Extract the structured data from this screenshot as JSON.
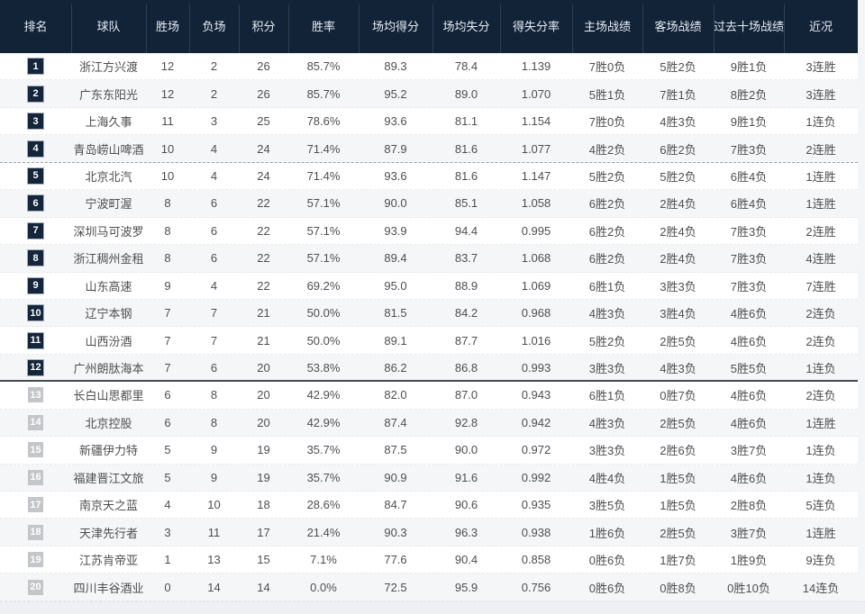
{
  "table": {
    "columns": [
      {
        "key": "rank",
        "label": "排名"
      },
      {
        "key": "team",
        "label": "球队"
      },
      {
        "key": "wins",
        "label": "胜场"
      },
      {
        "key": "losses",
        "label": "负场"
      },
      {
        "key": "points",
        "label": "积分"
      },
      {
        "key": "win_rate",
        "label": "胜率"
      },
      {
        "key": "avg_scored",
        "label": "场均得分"
      },
      {
        "key": "avg_allowed",
        "label": "场均失分"
      },
      {
        "key": "score_ratio",
        "label": "得失分率"
      },
      {
        "key": "home_record",
        "label": "主场战绩"
      },
      {
        "key": "away_record",
        "label": "客场战绩"
      },
      {
        "key": "last10_record",
        "label": "过去十场战绩"
      },
      {
        "key": "streak",
        "label": "近况"
      }
    ],
    "playoff_line_after_rank": 4,
    "division_line_after_rank": 12,
    "highlight_rank_threshold": 12,
    "rows": [
      {
        "rank": 1,
        "team": "浙江方兴渡",
        "wins": 12,
        "losses": 2,
        "points": 26,
        "win_rate": "85.7%",
        "avg_scored": "89.3",
        "avg_allowed": "78.4",
        "score_ratio": "1.139",
        "home_record": "7胜0负",
        "away_record": "5胜2负",
        "last10_record": "9胜1负",
        "streak": "3连胜"
      },
      {
        "rank": 2,
        "team": "广东东阳光",
        "wins": 12,
        "losses": 2,
        "points": 26,
        "win_rate": "85.7%",
        "avg_scored": "95.2",
        "avg_allowed": "89.0",
        "score_ratio": "1.070",
        "home_record": "5胜1负",
        "away_record": "7胜1负",
        "last10_record": "8胜2负",
        "streak": "3连胜"
      },
      {
        "rank": 3,
        "team": "上海久事",
        "wins": 11,
        "losses": 3,
        "points": 25,
        "win_rate": "78.6%",
        "avg_scored": "93.6",
        "avg_allowed": "81.1",
        "score_ratio": "1.154",
        "home_record": "7胜0负",
        "away_record": "4胜3负",
        "last10_record": "9胜1负",
        "streak": "1连负"
      },
      {
        "rank": 4,
        "team": "青岛崂山啤酒",
        "wins": 10,
        "losses": 4,
        "points": 24,
        "win_rate": "71.4%",
        "avg_scored": "87.9",
        "avg_allowed": "81.6",
        "score_ratio": "1.077",
        "home_record": "4胜2负",
        "away_record": "6胜2负",
        "last10_record": "7胜3负",
        "streak": "2连胜"
      },
      {
        "rank": 5,
        "team": "北京北汽",
        "wins": 10,
        "losses": 4,
        "points": 24,
        "win_rate": "71.4%",
        "avg_scored": "93.6",
        "avg_allowed": "81.6",
        "score_ratio": "1.147",
        "home_record": "5胜2负",
        "away_record": "5胜2负",
        "last10_record": "6胜4负",
        "streak": "1连胜"
      },
      {
        "rank": 6,
        "team": "宁波町渥",
        "wins": 8,
        "losses": 6,
        "points": 22,
        "win_rate": "57.1%",
        "avg_scored": "90.0",
        "avg_allowed": "85.1",
        "score_ratio": "1.058",
        "home_record": "6胜2负",
        "away_record": "2胜4负",
        "last10_record": "6胜4负",
        "streak": "1连胜"
      },
      {
        "rank": 7,
        "team": "深圳马可波罗",
        "wins": 8,
        "losses": 6,
        "points": 22,
        "win_rate": "57.1%",
        "avg_scored": "93.9",
        "avg_allowed": "94.4",
        "score_ratio": "0.995",
        "home_record": "6胜2负",
        "away_record": "2胜4负",
        "last10_record": "7胜3负",
        "streak": "2连胜"
      },
      {
        "rank": 8,
        "team": "浙江稠州金租",
        "wins": 8,
        "losses": 6,
        "points": 22,
        "win_rate": "57.1%",
        "avg_scored": "89.4",
        "avg_allowed": "83.7",
        "score_ratio": "1.068",
        "home_record": "6胜2负",
        "away_record": "2胜4负",
        "last10_record": "7胜3负",
        "streak": "4连胜"
      },
      {
        "rank": 9,
        "team": "山东高速",
        "wins": 9,
        "losses": 4,
        "points": 22,
        "win_rate": "69.2%",
        "avg_scored": "95.0",
        "avg_allowed": "88.9",
        "score_ratio": "1.069",
        "home_record": "6胜1负",
        "away_record": "3胜3负",
        "last10_record": "7胜3负",
        "streak": "7连胜"
      },
      {
        "rank": 10,
        "team": "辽宁本钢",
        "wins": 7,
        "losses": 7,
        "points": 21,
        "win_rate": "50.0%",
        "avg_scored": "81.5",
        "avg_allowed": "84.2",
        "score_ratio": "0.968",
        "home_record": "4胜3负",
        "away_record": "3胜4负",
        "last10_record": "4胜6负",
        "streak": "2连负"
      },
      {
        "rank": 11,
        "team": "山西汾酒",
        "wins": 7,
        "losses": 7,
        "points": 21,
        "win_rate": "50.0%",
        "avg_scored": "89.1",
        "avg_allowed": "87.7",
        "score_ratio": "1.016",
        "home_record": "5胜2负",
        "away_record": "2胜5负",
        "last10_record": "4胜6负",
        "streak": "2连负"
      },
      {
        "rank": 12,
        "team": "广州朗肽海本",
        "wins": 7,
        "losses": 6,
        "points": 20,
        "win_rate": "53.8%",
        "avg_scored": "86.2",
        "avg_allowed": "86.8",
        "score_ratio": "0.993",
        "home_record": "3胜3负",
        "away_record": "4胜3负",
        "last10_record": "5胜5负",
        "streak": "1连负"
      },
      {
        "rank": 13,
        "team": "长白山思都里",
        "wins": 6,
        "losses": 8,
        "points": 20,
        "win_rate": "42.9%",
        "avg_scored": "82.0",
        "avg_allowed": "87.0",
        "score_ratio": "0.943",
        "home_record": "6胜1负",
        "away_record": "0胜7负",
        "last10_record": "4胜6负",
        "streak": "2连负"
      },
      {
        "rank": 14,
        "team": "北京控股",
        "wins": 6,
        "losses": 8,
        "points": 20,
        "win_rate": "42.9%",
        "avg_scored": "87.4",
        "avg_allowed": "92.8",
        "score_ratio": "0.942",
        "home_record": "4胜3负",
        "away_record": "2胜5负",
        "last10_record": "4胜6负",
        "streak": "1连胜"
      },
      {
        "rank": 15,
        "team": "新疆伊力特",
        "wins": 5,
        "losses": 9,
        "points": 19,
        "win_rate": "35.7%",
        "avg_scored": "87.5",
        "avg_allowed": "90.0",
        "score_ratio": "0.972",
        "home_record": "3胜3负",
        "away_record": "2胜6负",
        "last10_record": "3胜7负",
        "streak": "1连负"
      },
      {
        "rank": 16,
        "team": "福建晋江文旅",
        "wins": 5,
        "losses": 9,
        "points": 19,
        "win_rate": "35.7%",
        "avg_scored": "90.9",
        "avg_allowed": "91.6",
        "score_ratio": "0.992",
        "home_record": "4胜4负",
        "away_record": "1胜5负",
        "last10_record": "4胜6负",
        "streak": "1连负"
      },
      {
        "rank": 17,
        "team": "南京天之蓝",
        "wins": 4,
        "losses": 10,
        "points": 18,
        "win_rate": "28.6%",
        "avg_scored": "84.7",
        "avg_allowed": "90.6",
        "score_ratio": "0.935",
        "home_record": "3胜5负",
        "away_record": "1胜5负",
        "last10_record": "2胜8负",
        "streak": "5连负"
      },
      {
        "rank": 18,
        "team": "天津先行者",
        "wins": 3,
        "losses": 11,
        "points": 17,
        "win_rate": "21.4%",
        "avg_scored": "90.3",
        "avg_allowed": "96.3",
        "score_ratio": "0.938",
        "home_record": "1胜6负",
        "away_record": "2胜5负",
        "last10_record": "3胜7负",
        "streak": "1连胜"
      },
      {
        "rank": 19,
        "team": "江苏肯帝亚",
        "wins": 1,
        "losses": 13,
        "points": 15,
        "win_rate": "7.1%",
        "avg_scored": "77.6",
        "avg_allowed": "90.4",
        "score_ratio": "0.858",
        "home_record": "0胜6负",
        "away_record": "1胜7负",
        "last10_record": "1胜9负",
        "streak": "9连负"
      },
      {
        "rank": 20,
        "team": "四川丰谷酒业",
        "wins": 0,
        "losses": 14,
        "points": 14,
        "win_rate": "0.0%",
        "avg_scored": "72.5",
        "avg_allowed": "95.9",
        "score_ratio": "0.756",
        "home_record": "0胜6负",
        "away_record": "0胜8负",
        "last10_record": "0胜10负",
        "streak": "14连负"
      }
    ]
  },
  "colors": {
    "header_bg": "#122338",
    "rank_badge_top": "#14263c",
    "rank_badge_bottom": "#c4c6ca",
    "row_alt_bg": "#f5f6f8",
    "division_line": "#454b55"
  }
}
